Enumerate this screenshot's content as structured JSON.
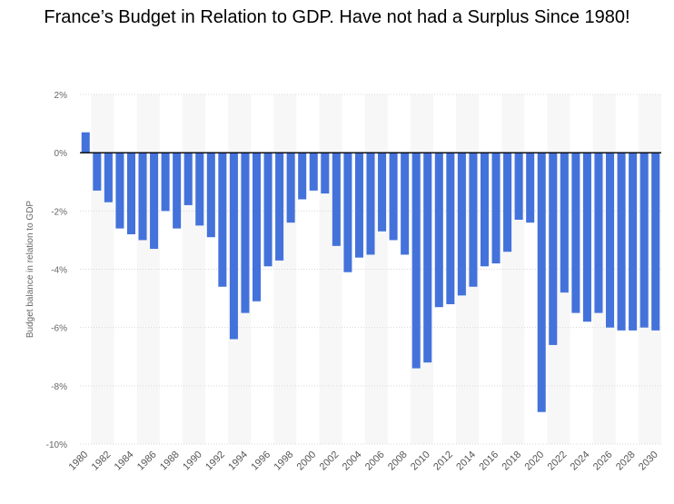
{
  "chart_data": {
    "type": "bar",
    "title": "France’s Budget in Relation to GDP. Have not had a Surplus Since 1980!",
    "xlabel": "",
    "ylabel": "Budget balance in relation to GDP",
    "ylim": [
      -10,
      2
    ],
    "yticks": [
      2,
      0,
      -2,
      -4,
      -6,
      -8,
      -10
    ],
    "ytick_labels": [
      "2%",
      "0%",
      "-2%",
      "-4%",
      "-6%",
      "-8%",
      "-10%"
    ],
    "xtick_labels": [
      "1980",
      "1982",
      "1984",
      "1986",
      "1988",
      "1990",
      "1992",
      "1994",
      "1996",
      "1998",
      "2000",
      "2002",
      "2004",
      "2006",
      "2008",
      "2010",
      "2012",
      "2014",
      "2016",
      "2018",
      "2020",
      "2022",
      "2024",
      "2026",
      "2028",
      "2030"
    ],
    "grid": true,
    "bar_color": "#4472db",
    "categories": [
      "1980",
      "1981",
      "1982",
      "1983",
      "1984",
      "1985",
      "1986",
      "1987",
      "1988",
      "1989",
      "1990",
      "1991",
      "1992",
      "1993",
      "1994",
      "1995",
      "1996",
      "1997",
      "1998",
      "1999",
      "2000",
      "2001",
      "2002",
      "2003",
      "2004",
      "2005",
      "2006",
      "2007",
      "2008",
      "2009",
      "2010",
      "2011",
      "2012",
      "2013",
      "2014",
      "2015",
      "2016",
      "2017",
      "2018",
      "2019",
      "2020",
      "2021",
      "2022",
      "2023",
      "2024",
      "2025",
      "2026",
      "2027",
      "2028",
      "2029",
      "2030"
    ],
    "values": [
      0.7,
      -1.3,
      -1.7,
      -2.6,
      -2.8,
      -3.0,
      -3.3,
      -2.0,
      -2.6,
      -1.8,
      -2.5,
      -2.9,
      -4.6,
      -6.4,
      -5.5,
      -5.1,
      -3.9,
      -3.7,
      -2.4,
      -1.6,
      -1.3,
      -1.4,
      -3.2,
      -4.1,
      -3.6,
      -3.5,
      -2.7,
      -3.0,
      -3.5,
      -7.4,
      -7.2,
      -5.3,
      -5.2,
      -4.9,
      -4.6,
      -3.9,
      -3.8,
      -3.4,
      -2.3,
      -2.4,
      -8.9,
      -6.6,
      -4.8,
      -5.5,
      -5.8,
      -5.5,
      -6.0,
      -6.1,
      -6.1,
      -6.0,
      -6.1
    ]
  }
}
